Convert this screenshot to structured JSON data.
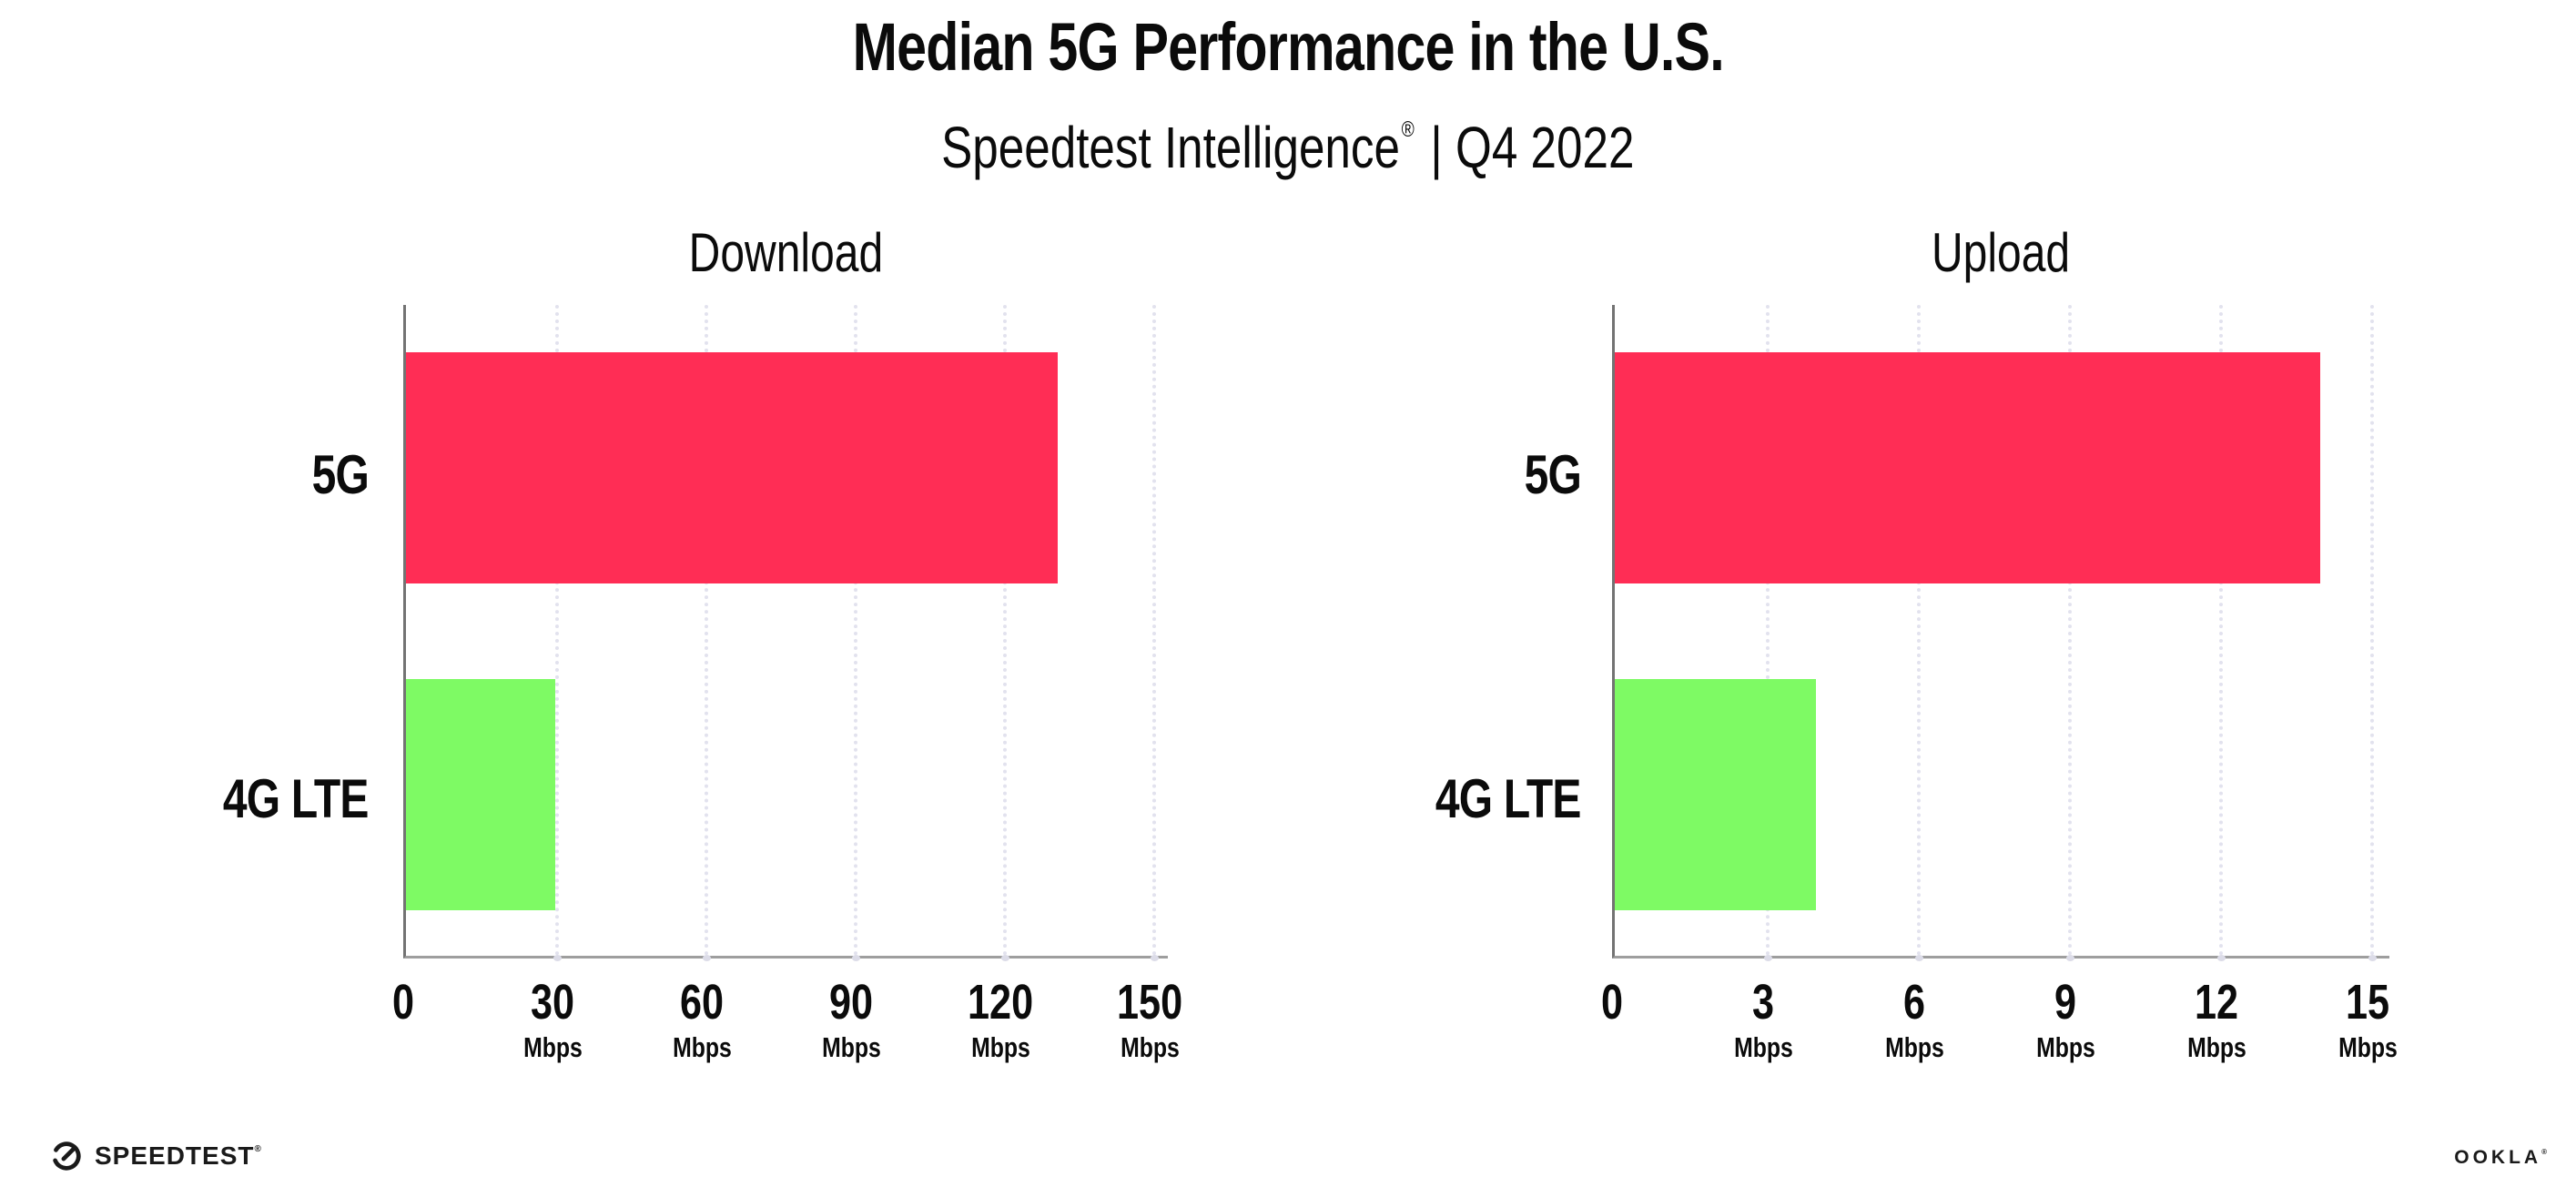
{
  "header": {
    "title": "Median 5G Performance in the U.S.",
    "subtitle": {
      "brand": "Speedtest Intelligence",
      "registered_mark": "®",
      "divider": "|",
      "period": "Q4 2022"
    }
  },
  "chart_data": [
    {
      "type": "bar",
      "orientation": "horizontal",
      "title": "Download",
      "categories": [
        "5G",
        "4G LTE"
      ],
      "values": [
        131,
        30
      ],
      "unit": "Mbps",
      "xlim": [
        0,
        150
      ],
      "xticks": [
        0,
        30,
        60,
        90,
        120,
        150
      ],
      "bar_colors": [
        "#FF2D55",
        "#7EFA64"
      ],
      "grid": "dotted-vertical",
      "legend": "none"
    },
    {
      "type": "bar",
      "orientation": "horizontal",
      "title": "Upload",
      "categories": [
        "5G",
        "4G LTE"
      ],
      "values": [
        14,
        4
      ],
      "unit": "Mbps",
      "xlim": [
        0,
        15
      ],
      "xticks": [
        0,
        3,
        6,
        9,
        12,
        15
      ],
      "bar_colors": [
        "#FF2D55",
        "#7EFA64"
      ],
      "grid": "dotted-vertical",
      "legend": "none"
    }
  ],
  "footer": {
    "speedtest_logo_text": "SPEEDTEST",
    "speedtest_registered_mark": "®",
    "ookla_logo_text": "OOKLA",
    "ookla_registered_mark": "®"
  },
  "colors": {
    "bar_5g": "#FF2D55",
    "bar_4g_lte": "#7EFA64",
    "grid_dots": "#e2e2ee",
    "axis_spine_left": "#737373",
    "axis_spine_bottom": "#9e9e9e",
    "text": "#0b0b0b",
    "background": "#ffffff"
  }
}
